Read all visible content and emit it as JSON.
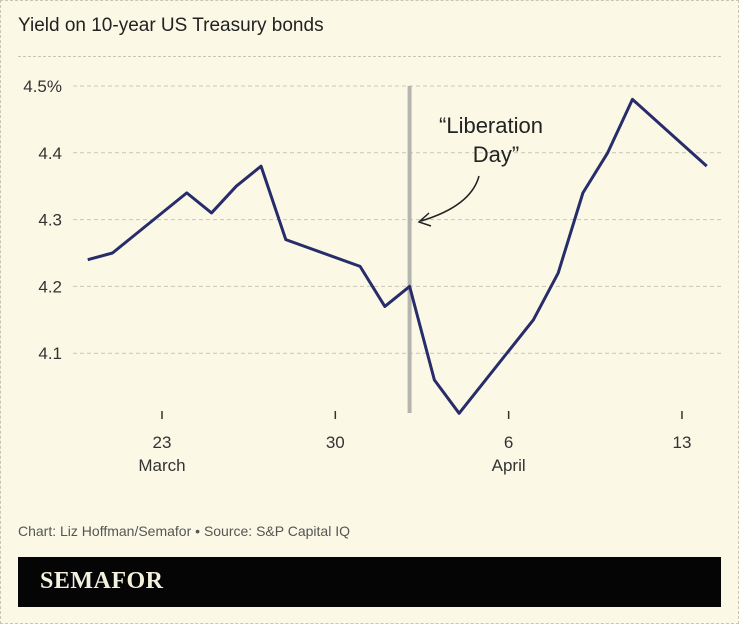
{
  "title": "Yield on 10-year US Treasury bonds",
  "credit": "Chart: Liz Hoffman/Semafor • Source: S&P Capital IQ",
  "logo": "SEMAFOR",
  "chart_data": {
    "type": "line",
    "title": "Yield on 10-year US Treasury bonds",
    "y_ticks": [
      {
        "v": 4.5,
        "label": "4.5%"
      },
      {
        "v": 4.4,
        "label": "4.4"
      },
      {
        "v": 4.3,
        "label": "4.3"
      },
      {
        "v": 4.2,
        "label": "4.2"
      },
      {
        "v": 4.1,
        "label": "4.1"
      }
    ],
    "x_ticks": [
      {
        "date": "03-23",
        "label": "23",
        "month": "March"
      },
      {
        "date": "03-30",
        "label": "30",
        "month": ""
      },
      {
        "date": "04-06",
        "label": "6",
        "month": "April"
      },
      {
        "date": "04-13",
        "label": "13",
        "month": ""
      }
    ],
    "ylim": [
      4.0,
      4.5
    ],
    "grid": true,
    "line_color": "#272c6a",
    "series": [
      {
        "values": [
          {
            "x": "03-20",
            "y": 4.24
          },
          {
            "x": "03-21",
            "y": 4.25
          },
          {
            "x": "03-24",
            "y": 4.34
          },
          {
            "x": "03-25",
            "y": 4.31
          },
          {
            "x": "03-26",
            "y": 4.35
          },
          {
            "x": "03-27",
            "y": 4.38
          },
          {
            "x": "03-28",
            "y": 4.27
          },
          {
            "x": "03-31",
            "y": 4.23
          },
          {
            "x": "04-01",
            "y": 4.17
          },
          {
            "x": "04-02",
            "y": 4.2
          },
          {
            "x": "04-03",
            "y": 4.06
          },
          {
            "x": "04-04",
            "y": 4.01
          },
          {
            "x": "04-07",
            "y": 4.15
          },
          {
            "x": "04-08",
            "y": 4.22
          },
          {
            "x": "04-09",
            "y": 4.34
          },
          {
            "x": "04-10",
            "y": 4.4
          },
          {
            "x": "04-11",
            "y": 4.48
          },
          {
            "x": "04-14",
            "y": 4.38
          }
        ]
      }
    ],
    "annotation": {
      "date": "04-02",
      "line1": "“Liberation",
      "line2": "Day”"
    }
  }
}
